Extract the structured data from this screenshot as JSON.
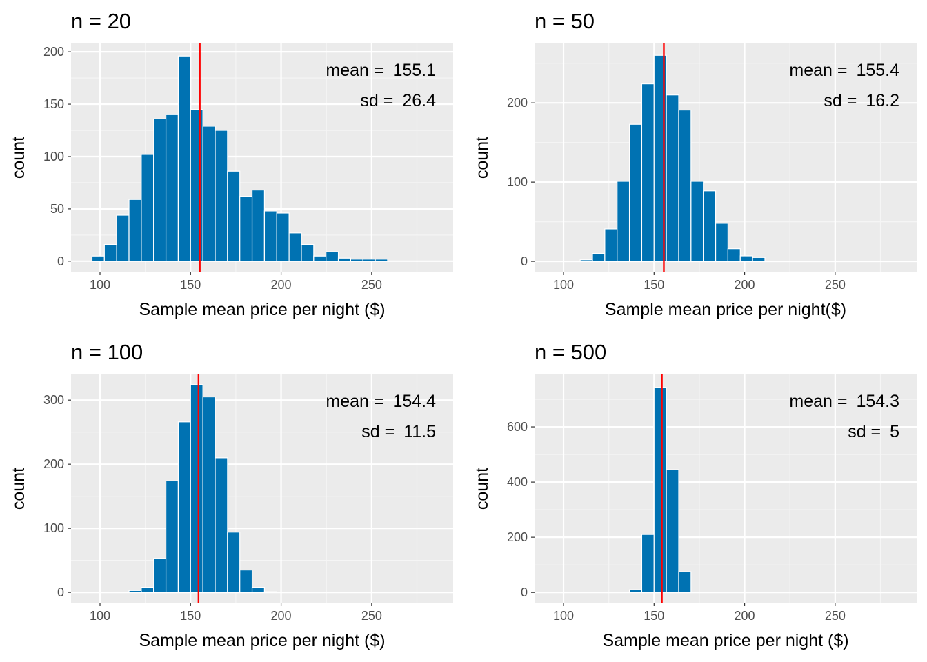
{
  "colors": {
    "bar": "#0072B2",
    "mean_line": "#FF0000",
    "panel_bg": "#EBEBEB",
    "grid_major": "#FFFFFF",
    "grid_minor": "#F5F5F5",
    "tick_text": "#4D4D4D"
  },
  "chart_data": [
    {
      "type": "bar",
      "title": "n = 20",
      "xlabel": "Sample mean price per night ($)",
      "ylabel": "count",
      "xlim": [
        84,
        295
      ],
      "ylim": [
        -10,
        208
      ],
      "xticks": [
        100,
        150,
        200,
        250
      ],
      "yticks": [
        0,
        50,
        100,
        150,
        200
      ],
      "xtick_labels": [
        "100",
        "150",
        "200",
        "250"
      ],
      "ytick_labels": [
        "0",
        "50",
        "100",
        "150",
        "200"
      ],
      "bin_width": 6.8,
      "bin_centers": [
        99,
        105.8,
        112.6,
        119.4,
        126.2,
        133,
        139.8,
        146.6,
        153.4,
        160.2,
        167,
        173.8,
        180.6,
        187.4,
        194.2,
        201,
        207.8,
        214.6,
        221.4,
        228.2,
        235,
        241.8,
        248.6,
        255.4
      ],
      "counts": [
        5,
        16,
        44,
        59,
        102,
        136,
        140,
        196,
        145,
        129,
        125,
        86,
        62,
        68,
        48,
        46,
        27,
        16,
        5,
        9,
        3,
        2,
        2,
        2
      ],
      "mean_line": 155.1,
      "annotations": [
        {
          "label": "mean = ",
          "value": "155.1"
        },
        {
          "label": "sd = ",
          "value": "26.4"
        }
      ]
    },
    {
      "type": "bar",
      "title": "n = 50",
      "xlabel": "Sample mean price per night($)",
      "ylabel": "count",
      "xlim": [
        84,
        295
      ],
      "ylim": [
        -13,
        275
      ],
      "xticks": [
        100,
        150,
        200,
        250
      ],
      "yticks": [
        0,
        100,
        200
      ],
      "xtick_labels": [
        "100",
        "150",
        "200",
        "250"
      ],
      "ytick_labels": [
        "0",
        "100",
        "200"
      ],
      "bin_width": 6.8,
      "bin_centers": [
        112.6,
        119.4,
        126.2,
        133,
        139.8,
        146.6,
        153.4,
        160.2,
        167,
        173.8,
        180.6,
        187.4,
        194.2,
        201,
        207.8
      ],
      "counts": [
        2,
        10,
        41,
        101,
        173,
        224,
        260,
        210,
        191,
        101,
        89,
        48,
        16,
        7,
        5
      ],
      "mean_line": 155.4,
      "annotations": [
        {
          "label": "mean = ",
          "value": "155.4"
        },
        {
          "label": "sd = ",
          "value": "16.2"
        }
      ]
    },
    {
      "type": "bar",
      "title": "n = 100",
      "xlabel": "Sample mean price per night ($)",
      "ylabel": "count",
      "xlim": [
        84,
        295
      ],
      "ylim": [
        -16,
        340
      ],
      "xticks": [
        100,
        150,
        200,
        250
      ],
      "yticks": [
        0,
        100,
        200,
        300
      ],
      "xtick_labels": [
        "100",
        "150",
        "200",
        "250"
      ],
      "ytick_labels": [
        "0",
        "100",
        "200",
        "300"
      ],
      "bin_width": 6.8,
      "bin_centers": [
        119.4,
        126.2,
        133,
        139.8,
        146.6,
        153.4,
        160.2,
        167,
        173.8,
        180.6,
        187.4,
        194.2
      ],
      "counts": [
        3,
        8,
        53,
        174,
        266,
        324,
        305,
        210,
        94,
        35,
        8,
        1
      ],
      "mean_line": 154.4,
      "annotations": [
        {
          "label": "mean = ",
          "value": "154.4"
        },
        {
          "label": "sd = ",
          "value": "11.5"
        }
      ]
    },
    {
      "type": "bar",
      "title": "n = 500",
      "xlabel": "Sample mean price per night ($)",
      "ylabel": "count",
      "xlim": [
        84,
        295
      ],
      "ylim": [
        -37,
        790
      ],
      "xticks": [
        100,
        150,
        200,
        250
      ],
      "yticks": [
        0,
        200,
        400,
        600
      ],
      "xtick_labels": [
        "100",
        "150",
        "200",
        "250"
      ],
      "ytick_labels": [
        "0",
        "200",
        "400",
        "600"
      ],
      "bin_width": 6.8,
      "bin_centers": [
        139.8,
        146.6,
        153.4,
        160.2,
        167
      ],
      "counts": [
        10,
        210,
        743,
        445,
        75
      ],
      "mean_line": 154.3,
      "annotations": [
        {
          "label": "mean = ",
          "value": "154.3"
        },
        {
          "label": "sd = ",
          "value": "5"
        }
      ]
    }
  ]
}
